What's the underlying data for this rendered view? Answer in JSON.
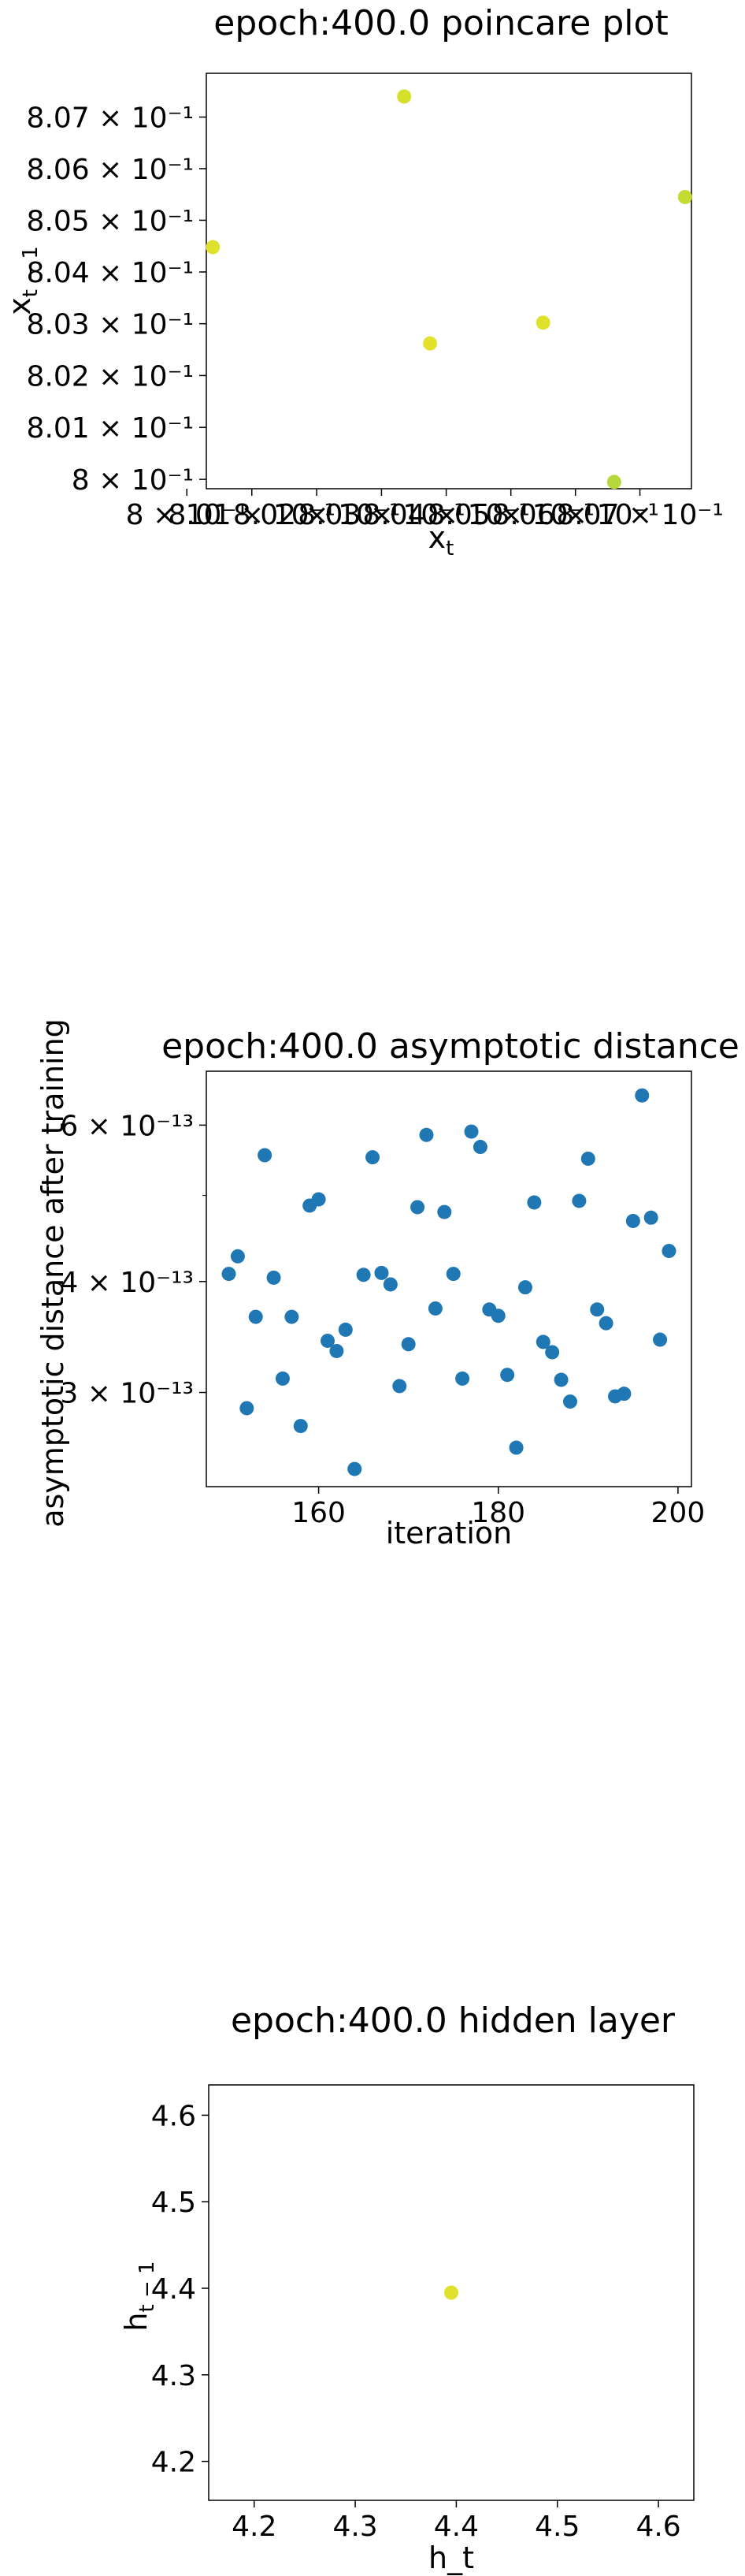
{
  "chart_data": [
    {
      "type": "scatter",
      "title": "epoch:400.0 poincare plot",
      "xlabel": "x",
      "xlabel_sub": "t",
      "ylabel": "x",
      "ylabel_sub": "t − 1",
      "x_scale": "log",
      "y_scale": "log",
      "xlim": [
        0.8003,
        0.8078
      ],
      "ylim": [
        0.79982,
        0.80785
      ],
      "x_tick_values": [
        0.8,
        0.801,
        0.802,
        0.803,
        0.804,
        0.805,
        0.806,
        0.807
      ],
      "x_tick_labels": [
        "8 × 10⁻¹",
        "8.01 × 10⁻¹",
        "8.02 × 10⁻¹",
        "8.03 × 10⁻¹",
        "8.04 × 10⁻¹",
        "8.05 × 10⁻¹",
        "8.06 × 10⁻¹",
        "8.07 × 10⁻¹"
      ],
      "y_tick_values": [
        0.8,
        0.801,
        0.802,
        0.803,
        0.804,
        0.805,
        0.806,
        0.807
      ],
      "y_tick_labels": [
        "8 × 10⁻¹",
        "8.01 × 10⁻¹",
        "8.02 × 10⁻¹",
        "8.03 × 10⁻¹",
        "8.04 × 10⁻¹",
        "8.05 × 10⁻¹",
        "8.06 × 10⁻¹",
        "8.07 × 10⁻¹"
      ],
      "grid": false,
      "points": [
        {
          "x": 0.8004,
          "y": 0.80448,
          "color": "#dfe12c"
        },
        {
          "x": 0.80335,
          "y": 0.8074,
          "color": "#d4e029"
        },
        {
          "x": 0.80375,
          "y": 0.80262,
          "color": "#e3e12c"
        },
        {
          "x": 0.8055,
          "y": 0.80302,
          "color": "#e0e12a"
        },
        {
          "x": 0.8066,
          "y": 0.79995,
          "color": "#b7d83a"
        },
        {
          "x": 0.8077,
          "y": 0.80545,
          "color": "#c4dc32"
        }
      ]
    },
    {
      "type": "scatter",
      "title": "epoch:400.0 asymptotic distance",
      "xlabel": "iteration",
      "ylabel": "asymptotic distance after training",
      "x_scale": "linear",
      "y_scale": "log",
      "xlim": [
        147.5,
        201.5
      ],
      "ylim": [
        2.35e-13,
        6.9e-13
      ],
      "x_tick_values": [
        160,
        180,
        200
      ],
      "x_tick_labels": [
        "160",
        "180",
        "200"
      ],
      "y_tick_values": [
        3e-13,
        4e-13,
        6e-13
      ],
      "y_tick_labels": [
        "3 × 10⁻¹³",
        "4 × 10⁻¹³",
        "6 × 10⁻¹³"
      ],
      "y_minor_tick_values": [
        5e-13
      ],
      "grid": false,
      "color": "#1f77b4",
      "x": [
        150,
        151,
        152,
        153,
        154,
        155,
        156,
        157,
        158,
        159,
        160,
        161,
        162,
        163,
        164,
        165,
        166,
        167,
        168,
        169,
        170,
        171,
        172,
        173,
        174,
        175,
        176,
        177,
        178,
        179,
        180,
        181,
        182,
        183,
        184,
        185,
        186,
        187,
        188,
        189,
        190,
        191,
        192,
        193,
        194,
        195,
        196,
        197,
        198,
        199
      ],
      "y": [
        4.08e-13,
        4.27e-13,
        2.88e-13,
        3.65e-13,
        5.55e-13,
        4.04e-13,
        3.11e-13,
        3.65e-13,
        2.75e-13,
        4.87e-13,
        4.95e-13,
        3.43e-13,
        3.34e-13,
        3.53e-13,
        2.46e-13,
        4.07e-13,
        5.52e-13,
        4.09e-13,
        3.97e-13,
        3.05e-13,
        3.4e-13,
        4.85e-13,
        5.85e-13,
        3.73e-13,
        4.79e-13,
        4.08e-13,
        3.11e-13,
        5.9e-13,
        5.67e-13,
        3.72e-13,
        3.66e-13,
        3.14e-13,
        2.6e-13,
        3.94e-13,
        4.91e-13,
        3.42e-13,
        3.33e-13,
        3.1e-13,
        2.93e-13,
        4.93e-13,
        5.5e-13,
        3.72e-13,
        3.59e-13,
        2.97e-13,
        2.99e-13,
        4.68e-13,
        6.48e-13,
        4.72e-13,
        3.44e-13,
        4.33e-13
      ]
    },
    {
      "type": "scatter",
      "title": "epoch:400.0 hidden layer",
      "xlabel": "h_t",
      "ylabel": "h",
      "ylabel_sub": "t − 1",
      "x_scale": "linear",
      "y_scale": "linear",
      "xlim": [
        4.155,
        4.635
      ],
      "ylim": [
        4.155,
        4.635
      ],
      "x_tick_values": [
        4.2,
        4.3,
        4.4,
        4.5,
        4.6
      ],
      "x_tick_labels": [
        "4.2",
        "4.3",
        "4.4",
        "4.5",
        "4.6"
      ],
      "y_tick_values": [
        4.2,
        4.3,
        4.4,
        4.5,
        4.6
      ],
      "y_tick_labels": [
        "4.2",
        "4.3",
        "4.4",
        "4.5",
        "4.6"
      ],
      "grid": false,
      "points": [
        {
          "x": 4.395,
          "y": 4.395,
          "color": "#dfe12c"
        }
      ]
    }
  ]
}
